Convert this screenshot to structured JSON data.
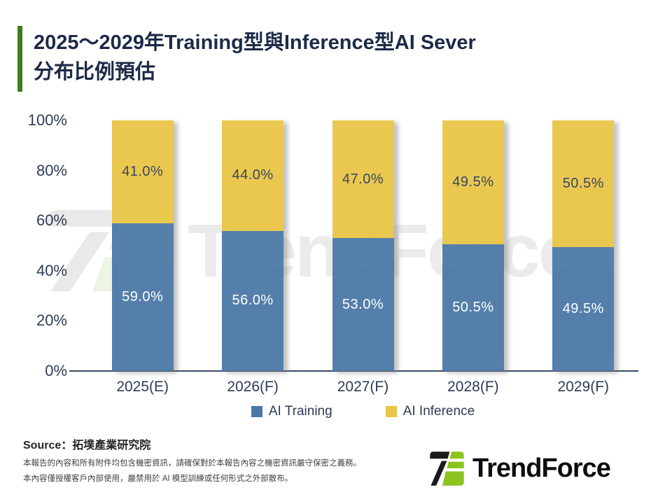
{
  "title": {
    "line1": "2025～2029年Training型與Inference型AI Sever",
    "line2": "分布比例預估"
  },
  "chart_data": {
    "type": "bar",
    "stacked": true,
    "categories": [
      "2025(E)",
      "2026(F)",
      "2027(F)",
      "2028(F)",
      "2029(F)"
    ],
    "series": [
      {
        "name": "AI Training",
        "color": "#4b79a7",
        "values": [
          59.0,
          56.0,
          53.0,
          50.5,
          49.5
        ]
      },
      {
        "name": "AI Inference",
        "color": "#e9c647",
        "values": [
          41.0,
          44.0,
          47.0,
          49.5,
          50.5
        ]
      }
    ],
    "y_ticks": [
      "100%",
      "80%",
      "60%",
      "40%",
      "20%",
      "0%"
    ],
    "ylim": [
      0,
      100
    ],
    "grid": false,
    "legend_position": "bottom",
    "value_suffix": "%",
    "value_decimals": 1
  },
  "legend": [
    {
      "label": "AI Training",
      "color": "#4b79a7"
    },
    {
      "label": "AI Inference",
      "color": "#e9c647"
    }
  ],
  "watermark": {
    "text": "TrendForce"
  },
  "footer": {
    "source": "Source：拓墣產業研究院",
    "disclaimer_line1": "本報告的內容和所有附件均包含機密資訊，請確保對於本報告內容之機密資訊嚴守保密之義務。",
    "disclaimer_line2": "本內容僅授權客戶內部使用，嚴禁用於 AI 模型訓練或任何形式之外部散布。",
    "logo_text": "TrendForce"
  },
  "colors": {
    "accent_green": "#3c7d20",
    "title_navy": "#1c2a47",
    "axis_text": "#2e3b55",
    "logo_black": "#1a1a1a",
    "logo_green": "#8bc41f",
    "watermark_gray": "#ebebeb",
    "watermark_green": "#eef3e3"
  }
}
